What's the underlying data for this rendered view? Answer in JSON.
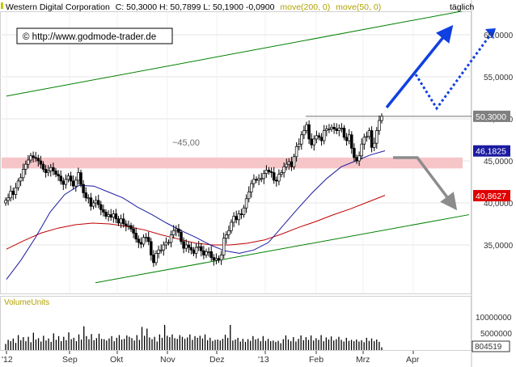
{
  "header": {
    "company": "Western Digital Corporation",
    "quote": "C: 50,3000  H: 50,7899  L: 50,1900  -0,0900",
    "ma200_label": "move(200, 0)",
    "ma50_label": "move(50, 0)",
    "period": "täglich"
  },
  "watermark": "© http://www.godmode-trader.de",
  "annotation_45": "~45,00",
  "price_badges": [
    {
      "label": "50,3000",
      "value": 50.3,
      "color": "#808080"
    },
    {
      "label": "46,1825",
      "value": 46.1825,
      "color": "#1a1aa0"
    },
    {
      "label": "40,8627",
      "value": 40.8627,
      "color": "#e00000"
    }
  ],
  "volume": {
    "title": "VolumeUnits",
    "tick_labels": [
      "10000000",
      "5000000"
    ],
    "current_label": "804519",
    "current_value": 804519
  },
  "colors": {
    "candle": "#000000",
    "ma50": "#1a1aa0",
    "ma200": "#c00000",
    "channel": "#008000",
    "resistance_zone": "#f6c5c8",
    "up_arrow": "#1040e0",
    "down_arrow": "#8c8c8c",
    "header_yellow": "#b0a000"
  },
  "chart_data": {
    "type": "candlestick",
    "title": "Western Digital Corporation",
    "x_tick_labels": [
      "'12",
      "Sep",
      "Okt",
      "Nov",
      "Dez",
      "'13",
      "Feb",
      "Mrz",
      "Apr"
    ],
    "y_tick_labels": [
      "35,0000",
      "40,0000",
      "45,0000",
      "50,0000",
      "55,0000",
      "60,0000"
    ],
    "y_ticks": [
      35,
      40,
      45,
      50,
      55,
      60
    ],
    "ylim": [
      30.7,
      63.0
    ],
    "close_series": [
      40.3,
      40.6,
      41.4,
      41.0,
      41.8,
      42.6,
      43.0,
      44.0,
      44.6,
      45.1,
      45.6,
      45.4,
      45.3,
      45.0,
      44.6,
      44.0,
      43.6,
      43.8,
      44.2,
      43.8,
      43.4,
      43.2,
      42.6,
      42.2,
      42.8,
      43.2,
      42.6,
      42.0,
      42.7,
      43.6,
      42.2,
      41.2,
      40.6,
      40.6,
      39.6,
      40.0,
      40.3,
      39.8,
      39.2,
      38.9,
      38.4,
      38.6,
      38.3,
      38.7,
      38.1,
      37.6,
      38.1,
      37.5,
      37.3,
      37.3,
      36.9,
      36.4,
      35.7,
      35.3,
      35.1,
      35.9,
      35.9,
      35.4,
      33.8,
      32.9,
      34.0,
      34.4,
      34.4,
      35.0,
      35.3,
      35.3,
      36.2,
      36.7,
      36.9,
      36.5,
      35.4,
      34.6,
      35.0,
      34.7,
      34.4,
      34.0,
      34.7,
      34.8,
      34.3,
      33.8,
      34.2,
      34.2,
      33.5,
      33.2,
      33.4,
      33.2,
      33.8,
      35.8,
      36.2,
      36.7,
      37.7,
      38.4,
      38.0,
      38.7,
      38.6,
      39.4,
      40.5,
      41.3,
      42.3,
      42.8,
      42.7,
      42.9,
      42.9,
      43.5,
      43.9,
      43.7,
      43.6,
      42.7,
      42.6,
      43.4,
      43.6,
      44.3,
      44.6,
      44.9,
      44.3,
      45.5,
      46.7,
      47.0,
      48.1,
      48.6,
      49.3,
      47.6,
      46.9,
      47.6,
      48.0,
      47.8,
      47.4,
      48.6,
      48.8,
      48.8,
      49.0,
      48.8,
      48.6,
      48.9,
      48.9,
      47.8,
      47.4,
      48.1,
      46.5,
      45.4,
      45.0,
      45.6,
      47.0,
      47.8,
      47.9,
      48.6,
      46.6,
      47.1,
      48.6,
      49.8,
      50.3
    ],
    "series": [
      {
        "name": "move(50, 0)",
        "values": [
          30.9,
          33.2,
          35.9,
          38.9,
          41.0,
          42.1,
          42.0,
          41.3,
          40.6,
          39.5,
          38.6,
          37.6,
          36.7,
          35.9,
          35.0,
          34.3,
          34.0,
          34.4,
          35.3,
          37.3,
          39.3,
          41.2,
          42.9,
          44.3,
          45.0,
          45.7,
          46.2
        ]
      },
      {
        "name": "move(200, 0)",
        "values": [
          34.5,
          35.5,
          36.4,
          37.0,
          37.4,
          37.6,
          37.5,
          37.2,
          36.8,
          36.2,
          35.7,
          35.2,
          35.0,
          35.0,
          35.2,
          35.6,
          36.3,
          37.1,
          37.8,
          38.6,
          39.3,
          40.1,
          40.9
        ]
      }
    ],
    "channel_lines": [
      {
        "name": "upper",
        "from": 52.7,
        "to": 63.0
      },
      {
        "name": "lower",
        "from": 30.5,
        "to": 38.6
      }
    ],
    "resistance_zone": [
      44.1,
      45.4
    ],
    "horizontal_line": 50.3,
    "volume_ylim": [
      0,
      12500000
    ],
    "volume_values": [
      1.8,
      3.0,
      2.6,
      3.4,
      2.1,
      4.4,
      2.9,
      3.8,
      2.6,
      3.9,
      2.3,
      5.1,
      3.1,
      3.5,
      2.5,
      4.2,
      2.8,
      3.4,
      2.4,
      4.9,
      3.0,
      4.1,
      2.6,
      3.9,
      2.9,
      5.2,
      3.2,
      3.6,
      2.6,
      4.6,
      3.1,
      7.0,
      4.1,
      3.2,
      4.7,
      2.9,
      3.5,
      4.8,
      3.3,
      3.2,
      2.8,
      3.4,
      4.1,
      2.6,
      3.6,
      4.4,
      3.1,
      3.3,
      4.3,
      3.9,
      3.5,
      2.8,
      4.4,
      3.0,
      6.8,
      4.2,
      6.3,
      3.7,
      3.2,
      3.9,
      2.5,
      4.6,
      3.6,
      7.4,
      4.2,
      3.8,
      4.6,
      3.5,
      3.3,
      4.4,
      3.9,
      3.3,
      3.7,
      4.6,
      3.0,
      4.1,
      3.6,
      4.2,
      3.4,
      4.6,
      2.9,
      3.6,
      2.7,
      3.0,
      3.1,
      2.8,
      3.3,
      4.5,
      3.6,
      7.4,
      2.8,
      3.1,
      3.6,
      2.5,
      3.3,
      2.4,
      3.2,
      2.7,
      4.1,
      3.1,
      3.4,
      2.6,
      4.1,
      2.7,
      3.3,
      2.6,
      2.8,
      2.4,
      2.7,
      2.0,
      3.2,
      4.3,
      3.1,
      2.6,
      3.8,
      2.5,
      3.3,
      4.3,
      2.9,
      3.8,
      3.0,
      4.3,
      2.8,
      3.5,
      3.0,
      4.4,
      2.6,
      3.7,
      3.1,
      4.0,
      2.8,
      3.2,
      3.9,
      3.0,
      2.5,
      3.6,
      2.7,
      3.0,
      2.6,
      3.1,
      2.5,
      2.9,
      2.3,
      3.6,
      2.7,
      3.4,
      2.6,
      3.1,
      2.4,
      0.8
    ],
    "volume_unit": "millions",
    "grid": true,
    "legend": "top"
  }
}
